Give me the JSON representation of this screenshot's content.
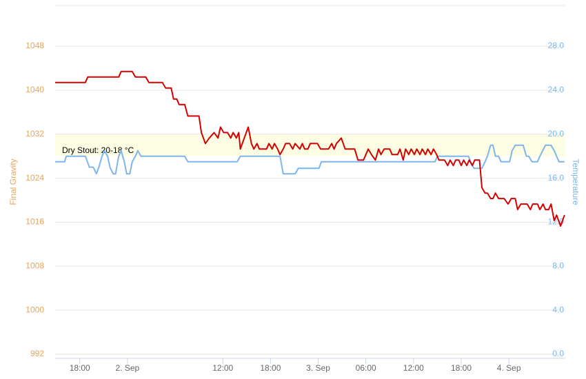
{
  "chart_data": {
    "type": "line",
    "y_label": "Final Gravity",
    "y2_label": "Temperature",
    "xlim": [
      14.9,
      79.1
    ],
    "xticks": [
      {
        "value": 18,
        "label": "18:00"
      },
      {
        "value": 24,
        "label": "2. Sep"
      },
      {
        "value": 36,
        "label": "12:00"
      },
      {
        "value": 42,
        "label": "18:00"
      },
      {
        "value": 48,
        "label": "3. Sep"
      },
      {
        "value": 54,
        "label": "06:00"
      },
      {
        "value": 60,
        "label": "12:00"
      },
      {
        "value": 66,
        "label": "18:00"
      },
      {
        "value": 72,
        "label": "4. Sep"
      }
    ],
    "ylim": [
      992,
      1055.4
    ],
    "yticks": [
      992,
      1000,
      1008,
      1016,
      1024,
      1032,
      1040,
      1048
    ],
    "y2lim": [
      0,
      31.7
    ],
    "y2ticks": [
      {
        "value": 0,
        "label": "0.0"
      },
      {
        "value": 4,
        "label": "4.0"
      },
      {
        "value": 8,
        "label": "8.0"
      },
      {
        "value": 12,
        "label": "12.0"
      },
      {
        "value": 16,
        "label": "16.0"
      },
      {
        "value": 20,
        "label": "20.0"
      },
      {
        "value": 24,
        "label": "24.0"
      },
      {
        "value": 28,
        "label": "28.0"
      }
    ],
    "grid": true,
    "y_label_color": "#e8a35c",
    "y2_label_color": "#7cb5ec",
    "plot_band": {
      "from": 18,
      "to": 20,
      "axis": "y2",
      "color": "#fdfde3",
      "label": "Dry Stout: 20-18 °C"
    },
    "series": [
      {
        "name": "Final Gravity",
        "color": "#d40000",
        "axis": "y",
        "x": [
          14.9,
          18.7,
          19.0,
          22.9,
          23.2,
          24.6,
          25.0,
          26.3,
          26.7,
          28.4,
          28.8,
          29.5,
          29.8,
          30.2,
          30.5,
          31.2,
          31.6,
          33.0,
          33.3,
          33.8,
          34.3,
          34.9,
          35.4,
          35.7,
          36.1,
          36.6,
          37.0,
          37.3,
          37.7,
          38.0,
          38.2,
          38.7,
          39.2,
          39.6,
          39.9,
          40.3,
          40.6,
          41.5,
          41.8,
          42.2,
          42.5,
          42.9,
          43.2,
          43.6,
          43.9,
          44.4,
          44.8,
          45.1,
          45.7,
          46.0,
          46.3,
          46.7,
          47.0,
          47.9,
          48.3,
          49.3,
          49.7,
          50.0,
          50.3,
          50.9,
          51.4,
          52.6,
          53.0,
          53.7,
          54.0,
          54.3,
          54.7,
          55.2,
          55.6,
          55.9,
          56.3,
          57.0,
          57.3,
          58.0,
          58.3,
          58.7,
          59.0,
          59.4,
          59.7,
          60.1,
          60.4,
          60.8,
          61.1,
          61.5,
          61.8,
          62.2,
          62.5,
          62.9,
          63.2,
          63.9,
          64.3,
          64.6,
          65.0,
          65.3,
          65.7,
          66.0,
          66.3,
          66.7,
          67.0,
          67.4,
          67.7,
          68.3,
          68.6,
          69.0,
          69.3,
          69.7,
          70.0,
          70.3,
          70.7,
          71.4,
          71.9,
          72.3,
          72.8,
          73.1,
          73.5,
          74.3,
          74.7,
          75.0,
          75.6,
          75.9,
          76.3,
          76.6,
          77.0,
          77.3,
          77.7,
          78.0,
          78.5,
          79.0
        ],
        "values": [
          1041.4,
          1041.4,
          1042.4,
          1042.4,
          1043.4,
          1043.4,
          1042.4,
          1042.4,
          1041.4,
          1041.4,
          1040.4,
          1040.4,
          1038.4,
          1038.4,
          1037.4,
          1037.4,
          1035.3,
          1035.3,
          1032.3,
          1030.3,
          1031.3,
          1032.3,
          1031.3,
          1033.3,
          1032.3,
          1032.3,
          1031.3,
          1032.3,
          1031.3,
          1032.3,
          1029.3,
          1031.3,
          1033.3,
          1030.3,
          1029.3,
          1030.3,
          1029.3,
          1029.3,
          1030.3,
          1029.3,
          1030.3,
          1029.3,
          1028.3,
          1029.3,
          1030.3,
          1030.3,
          1029.3,
          1030.3,
          1029.3,
          1030.3,
          1029.3,
          1029.3,
          1030.3,
          1030.3,
          1029.3,
          1029.3,
          1030.3,
          1029.3,
          1030.3,
          1031.3,
          1029.3,
          1029.3,
          1027.3,
          1027.3,
          1028.3,
          1029.3,
          1028.3,
          1027.3,
          1029.3,
          1028.3,
          1029.3,
          1029.3,
          1028.3,
          1028.3,
          1029.3,
          1027.3,
          1029.3,
          1028.3,
          1029.3,
          1028.3,
          1029.3,
          1028.3,
          1029.3,
          1028.3,
          1029.3,
          1028.3,
          1029.3,
          1028.3,
          1027.3,
          1027.3,
          1026.3,
          1027.3,
          1026.3,
          1027.3,
          1027.3,
          1026.3,
          1027.3,
          1026.3,
          1027.3,
          1026.3,
          1027.3,
          1027.3,
          1022.3,
          1021.3,
          1021.3,
          1020.3,
          1020.3,
          1021.3,
          1020.3,
          1020.3,
          1019.3,
          1020.3,
          1020.3,
          1018.3,
          1019.3,
          1019.3,
          1018.3,
          1019.3,
          1019.3,
          1018.3,
          1019.3,
          1018.3,
          1018.3,
          1019.3,
          1016.3,
          1017.3,
          1015.3,
          1017.3
        ]
      },
      {
        "name": "Temperature",
        "color": "#7cb5ec",
        "axis": "y2",
        "x": [
          14.9,
          16.1,
          16.3,
          18.7,
          19.2,
          19.7,
          20.1,
          20.4,
          20.8,
          21.1,
          21.5,
          21.8,
          22.2,
          22.5,
          22.9,
          23.2,
          23.6,
          23.9,
          24.3,
          24.6,
          25.0,
          25.3,
          25.7,
          31.2,
          31.6,
          37.8,
          38.2,
          43.2,
          43.6,
          45.1,
          45.5,
          48.1,
          48.4,
          62.7,
          63.0,
          66.9,
          67.2,
          67.6,
          68.6,
          69.0,
          69.3,
          69.7,
          70.0,
          70.3,
          70.7,
          71.0,
          72.1,
          72.4,
          72.8,
          73.8,
          74.2,
          74.5,
          74.9,
          75.6,
          75.9,
          76.6,
          77.3,
          77.7,
          78.0,
          78.3,
          79.0
        ],
        "values": [
          17.5,
          17.5,
          18,
          18,
          17,
          17,
          16.4,
          17,
          18,
          18.5,
          18,
          17,
          16.4,
          16.4,
          18,
          18.5,
          17.5,
          16.4,
          16.4,
          17.5,
          18,
          18.5,
          18,
          18,
          17.5,
          17.5,
          18,
          18,
          16.4,
          16.4,
          16.9,
          16.9,
          17.5,
          17.5,
          18,
          18,
          17.5,
          16.9,
          16.9,
          17.5,
          18,
          19,
          19,
          18,
          18,
          17.5,
          17.5,
          18.5,
          19,
          19,
          18,
          18,
          17.5,
          17.5,
          18,
          19,
          19,
          18.5,
          18,
          17.5,
          17.5
        ]
      }
    ]
  }
}
